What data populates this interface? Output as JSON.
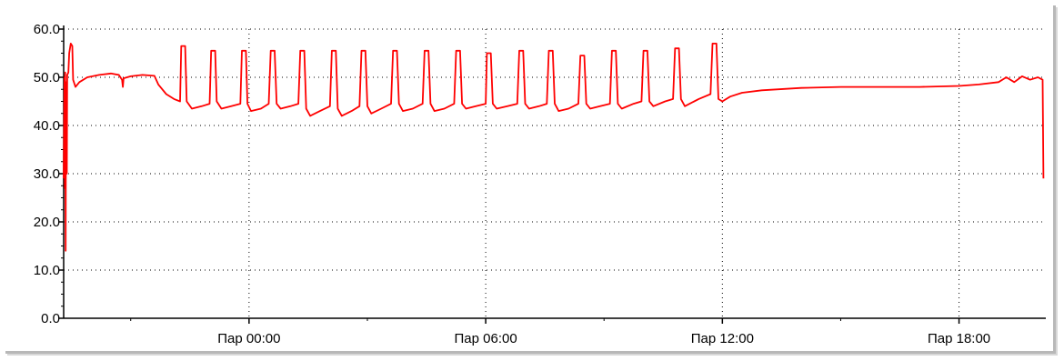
{
  "chart_data": {
    "type": "line",
    "title": "",
    "xlabel": "",
    "ylabel": "",
    "ylim": [
      0,
      60
    ],
    "y_ticks": [
      "0.0",
      "10.0",
      "20.0",
      "30.0",
      "40.0",
      "50.0",
      "60.0"
    ],
    "x_ticks": [
      {
        "label": "Пар 00:00",
        "hour": 0
      },
      {
        "label": "Пар 06:00",
        "hour": 6
      },
      {
        "label": "Пар 12:00",
        "hour": 12
      },
      {
        "label": "Пар 18:00",
        "hour": 18
      }
    ],
    "x_range_hours": [
      -4.7,
      20.2
    ],
    "grid": true,
    "series": [
      {
        "color": "#ff0000",
        "points": [
          [
            -4.7,
            29.0
          ],
          [
            -4.68,
            50.0
          ],
          [
            -4.67,
            27.0
          ],
          [
            -4.66,
            51.0
          ],
          [
            -4.65,
            14.0
          ],
          [
            -4.64,
            49.0
          ],
          [
            -4.62,
            30.0
          ],
          [
            -4.61,
            50.5
          ],
          [
            -4.58,
            51.0
          ],
          [
            -4.56,
            55.0
          ],
          [
            -4.52,
            57.0
          ],
          [
            -4.48,
            56.5
          ],
          [
            -4.46,
            49.5
          ],
          [
            -4.4,
            48.0
          ],
          [
            -4.3,
            49.0
          ],
          [
            -4.1,
            50.0
          ],
          [
            -3.8,
            50.5
          ],
          [
            -3.5,
            50.8
          ],
          [
            -3.3,
            50.5
          ],
          [
            -3.22,
            49.5
          ],
          [
            -3.2,
            48.0
          ],
          [
            -3.18,
            49.8
          ],
          [
            -3.0,
            50.2
          ],
          [
            -2.7,
            50.5
          ],
          [
            -2.4,
            50.3
          ],
          [
            -2.3,
            48.5
          ],
          [
            -2.1,
            46.5
          ],
          [
            -1.9,
            45.5
          ],
          [
            -1.75,
            45.0
          ],
          [
            -1.72,
            56.5
          ],
          [
            -1.62,
            56.5
          ],
          [
            -1.58,
            45.0
          ],
          [
            -1.45,
            43.5
          ],
          [
            -1.2,
            44.0
          ],
          [
            -1.0,
            44.5
          ],
          [
            -0.96,
            55.5
          ],
          [
            -0.86,
            55.5
          ],
          [
            -0.82,
            45.0
          ],
          [
            -0.7,
            43.5
          ],
          [
            -0.45,
            44.0
          ],
          [
            -0.22,
            44.5
          ],
          [
            -0.18,
            55.5
          ],
          [
            -0.08,
            55.5
          ],
          [
            -0.04,
            44.5
          ],
          [
            0.05,
            43.0
          ],
          [
            0.3,
            43.5
          ],
          [
            0.5,
            44.5
          ],
          [
            0.55,
            55.5
          ],
          [
            0.65,
            55.5
          ],
          [
            0.7,
            44.5
          ],
          [
            0.8,
            43.5
          ],
          [
            1.05,
            44.0
          ],
          [
            1.25,
            44.5
          ],
          [
            1.3,
            55.5
          ],
          [
            1.4,
            55.5
          ],
          [
            1.45,
            43.5
          ],
          [
            1.55,
            42.0
          ],
          [
            1.8,
            43.0
          ],
          [
            2.05,
            44.0
          ],
          [
            2.1,
            55.5
          ],
          [
            2.2,
            55.5
          ],
          [
            2.25,
            43.5
          ],
          [
            2.35,
            42.0
          ],
          [
            2.6,
            43.0
          ],
          [
            2.8,
            44.0
          ],
          [
            2.85,
            55.5
          ],
          [
            2.95,
            55.5
          ],
          [
            3.0,
            44.0
          ],
          [
            3.1,
            42.5
          ],
          [
            3.35,
            43.5
          ],
          [
            3.6,
            44.5
          ],
          [
            3.65,
            55.5
          ],
          [
            3.75,
            55.5
          ],
          [
            3.8,
            44.5
          ],
          [
            3.9,
            43.0
          ],
          [
            4.15,
            43.5
          ],
          [
            4.4,
            44.5
          ],
          [
            4.45,
            55.5
          ],
          [
            4.55,
            55.5
          ],
          [
            4.6,
            44.5
          ],
          [
            4.7,
            43.0
          ],
          [
            4.95,
            43.5
          ],
          [
            5.2,
            44.5
          ],
          [
            5.25,
            55.5
          ],
          [
            5.35,
            55.5
          ],
          [
            5.4,
            44.5
          ],
          [
            5.5,
            43.5
          ],
          [
            5.75,
            44.0
          ],
          [
            6.0,
            44.5
          ],
          [
            6.03,
            55.0
          ],
          [
            6.13,
            55.0
          ],
          [
            6.18,
            44.5
          ],
          [
            6.28,
            43.5
          ],
          [
            6.55,
            44.0
          ],
          [
            6.8,
            44.5
          ],
          [
            6.85,
            55.5
          ],
          [
            6.95,
            55.5
          ],
          [
            7.0,
            44.5
          ],
          [
            7.1,
            43.5
          ],
          [
            7.35,
            44.0
          ],
          [
            7.55,
            44.5
          ],
          [
            7.6,
            55.5
          ],
          [
            7.7,
            55.5
          ],
          [
            7.75,
            44.5
          ],
          [
            7.85,
            43.0
          ],
          [
            8.1,
            43.5
          ],
          [
            8.35,
            44.5
          ],
          [
            8.4,
            54.5
          ],
          [
            8.5,
            54.5
          ],
          [
            8.55,
            44.5
          ],
          [
            8.65,
            43.5
          ],
          [
            8.9,
            44.0
          ],
          [
            9.15,
            44.5
          ],
          [
            9.2,
            55.5
          ],
          [
            9.3,
            55.5
          ],
          [
            9.35,
            44.5
          ],
          [
            9.45,
            43.5
          ],
          [
            9.75,
            44.5
          ],
          [
            9.95,
            45.0
          ],
          [
            10.0,
            55.5
          ],
          [
            10.1,
            55.5
          ],
          [
            10.15,
            45.0
          ],
          [
            10.25,
            44.0
          ],
          [
            10.55,
            45.0
          ],
          [
            10.75,
            45.5
          ],
          [
            10.8,
            56.0
          ],
          [
            10.9,
            56.0
          ],
          [
            10.95,
            45.5
          ],
          [
            11.05,
            44.0
          ],
          [
            11.4,
            45.5
          ],
          [
            11.7,
            46.5
          ],
          [
            11.75,
            57.0
          ],
          [
            11.85,
            57.0
          ],
          [
            11.9,
            45.5
          ],
          [
            12.0,
            45.0
          ],
          [
            12.2,
            46.0
          ],
          [
            12.5,
            46.8
          ],
          [
            13.0,
            47.3
          ],
          [
            14.0,
            47.8
          ],
          [
            15.0,
            48.0
          ],
          [
            16.0,
            48.0
          ],
          [
            17.0,
            48.0
          ],
          [
            18.0,
            48.2
          ],
          [
            18.5,
            48.5
          ],
          [
            19.0,
            49.0
          ],
          [
            19.2,
            50.0
          ],
          [
            19.4,
            49.0
          ],
          [
            19.6,
            50.2
          ],
          [
            19.8,
            49.5
          ],
          [
            20.0,
            50.0
          ],
          [
            20.12,
            49.5
          ],
          [
            20.14,
            29.0
          ]
        ]
      }
    ]
  }
}
